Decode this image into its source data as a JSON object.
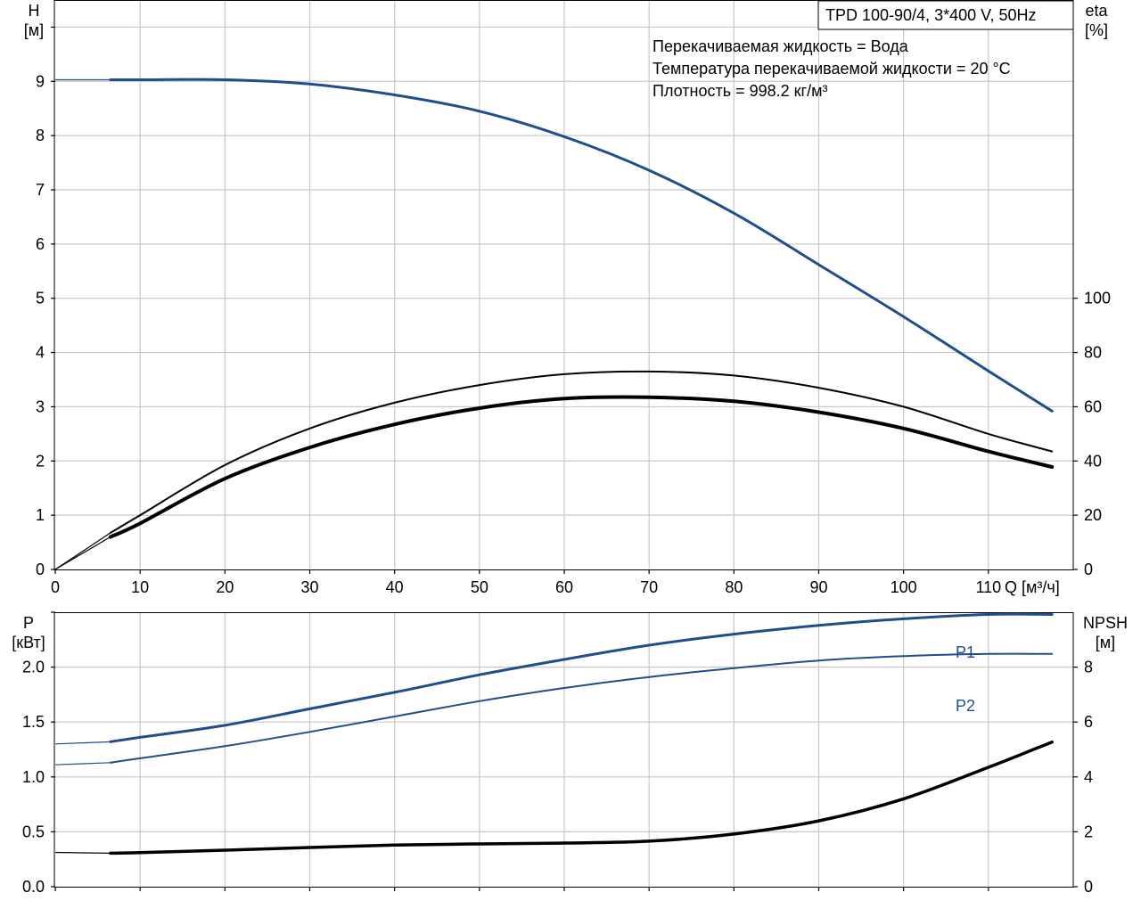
{
  "colors": {
    "blue": "#1f4e8c",
    "black": "#000000",
    "grid": "#c8c8c8"
  },
  "chart_data": [
    {
      "type": "line",
      "title": "TPD 100-90/4, 3*400 V, 50Hz",
      "annotations": [
        "Перекачиваемая жидкость = Вода",
        "Температура перекачиваемой жидкости = 20 °C",
        "Плотность = 998.2 кг/м³"
      ],
      "xlabel": "Q [м³/ч]",
      "xlim": [
        0,
        120
      ],
      "xticks": [
        "0",
        "10",
        "20",
        "30",
        "40",
        "50",
        "60",
        "70",
        "80",
        "90",
        "100",
        "110"
      ],
      "ylabel": [
        "H",
        "[м]"
      ],
      "ylim": [
        0,
        10.5
      ],
      "yticks": [
        "0",
        "1",
        "2",
        "3",
        "4",
        "5",
        "6",
        "7",
        "8",
        "9"
      ],
      "y2label": [
        "eta",
        "[%]"
      ],
      "y2lim": [
        0,
        210
      ],
      "y2ticks": [
        "0",
        "20",
        "40",
        "60",
        "80",
        "100"
      ],
      "grid": true,
      "series": [
        {
          "axis": "y",
          "color": "#1f4e8c",
          "x": [
            0,
            6.5,
            10,
            20,
            30,
            40,
            50,
            60,
            70,
            80,
            90,
            100,
            110,
            117.5
          ],
          "y": [
            9.03,
            9.03,
            9.03,
            9.03,
            8.95,
            8.75,
            8.45,
            7.98,
            7.36,
            6.57,
            5.62,
            4.66,
            3.66,
            2.92
          ],
          "highlight_from": 6.5,
          "width": 3
        },
        {
          "axis": "y2",
          "color": "#000000",
          "x": [
            0,
            6.5,
            10,
            20,
            30,
            40,
            50,
            60,
            70,
            80,
            90,
            100,
            110,
            117.5
          ],
          "y": [
            0,
            13.5,
            20,
            38.5,
            52,
            61.5,
            68,
            72,
            73,
            71.5,
            67,
            60,
            50,
            43.5
          ],
          "highlight_from": 6.5,
          "width": 2
        },
        {
          "axis": "y2",
          "color": "#000000",
          "x": [
            0,
            6.5,
            10,
            20,
            30,
            40,
            50,
            60,
            70,
            80,
            90,
            100,
            110,
            117.5
          ],
          "y": [
            0,
            12,
            17,
            33.5,
            45,
            53.5,
            59.5,
            63,
            63.5,
            62,
            58,
            52,
            43.5,
            37.8
          ],
          "highlight_from": 6.5,
          "width": 4
        }
      ]
    },
    {
      "type": "line",
      "xlim": [
        0,
        120
      ],
      "ylabel": [
        "P",
        "[кВт]"
      ],
      "ylim": [
        0,
        2.5
      ],
      "yticks": [
        "0.0",
        "0.5",
        "1.0",
        "1.5",
        "2.0"
      ],
      "y2label": [
        "NPSH",
        "[м]"
      ],
      "y2lim": [
        0,
        10
      ],
      "y2ticks": [
        "0",
        "2",
        "4",
        "6",
        "8"
      ],
      "grid": true,
      "series": [
        {
          "name": "P1",
          "axis": "y",
          "color": "#1f4e8c",
          "x": [
            0,
            6.5,
            10,
            20,
            30,
            40,
            50,
            60,
            70,
            80,
            90,
            100,
            110,
            117.5
          ],
          "y": [
            1.3,
            1.32,
            1.36,
            1.47,
            1.62,
            1.77,
            1.93,
            2.07,
            2.2,
            2.3,
            2.38,
            2.44,
            2.48,
            2.48
          ],
          "highlight_from": 6.5,
          "width": 3
        },
        {
          "name": "P2",
          "axis": "y",
          "color": "#1f4e8c",
          "x": [
            0,
            6.5,
            10,
            20,
            30,
            40,
            50,
            60,
            70,
            80,
            90,
            100,
            110,
            117.5
          ],
          "y": [
            1.11,
            1.13,
            1.17,
            1.28,
            1.41,
            1.55,
            1.69,
            1.81,
            1.91,
            1.99,
            2.06,
            2.1,
            2.12,
            2.12
          ],
          "highlight_from": 6.5,
          "width": 2
        },
        {
          "axis": "y2",
          "color": "#000000",
          "x": [
            0,
            6.5,
            10,
            20,
            30,
            40,
            50,
            60,
            70,
            80,
            90,
            100,
            110,
            117.5
          ],
          "y": [
            1.25,
            1.22,
            1.24,
            1.33,
            1.43,
            1.52,
            1.56,
            1.59,
            1.66,
            1.92,
            2.4,
            3.2,
            4.35,
            5.27
          ],
          "highlight_from": 6.5,
          "width": 3.5
        }
      ]
    }
  ]
}
